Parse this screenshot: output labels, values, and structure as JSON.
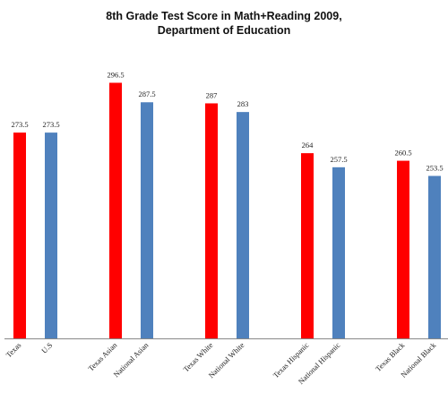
{
  "chart_data": {
    "type": "bar",
    "title_line1": "8th Grade Test Score in Math+Reading 2009,",
    "title_line2": "Department of Education",
    "xlabel": "",
    "ylabel": "",
    "grid": false,
    "legend": "none",
    "colors": {
      "texas": "#ff0000",
      "national": "#4f81bd"
    },
    "categories": [
      "Texas",
      "U.S",
      "Texas Asian",
      "National Asian",
      "Texas White",
      "National White",
      "Texas Hispanic",
      "National Hispanic",
      "Texas Black",
      "National Black"
    ],
    "values": [
      273.5,
      273.5,
      296.5,
      287.5,
      287,
      283,
      264,
      257.5,
      260.5,
      253.5
    ],
    "value_labels": [
      "273.5",
      "273.5",
      "296.5",
      "287.5",
      "287",
      "283",
      "264",
      "257.5",
      "260.5",
      "253.5"
    ],
    "bar_colors": [
      "texas",
      "national",
      "texas",
      "national",
      "texas",
      "national",
      "texas",
      "national",
      "texas",
      "national"
    ],
    "ylim": [
      178.5,
      300
    ]
  }
}
